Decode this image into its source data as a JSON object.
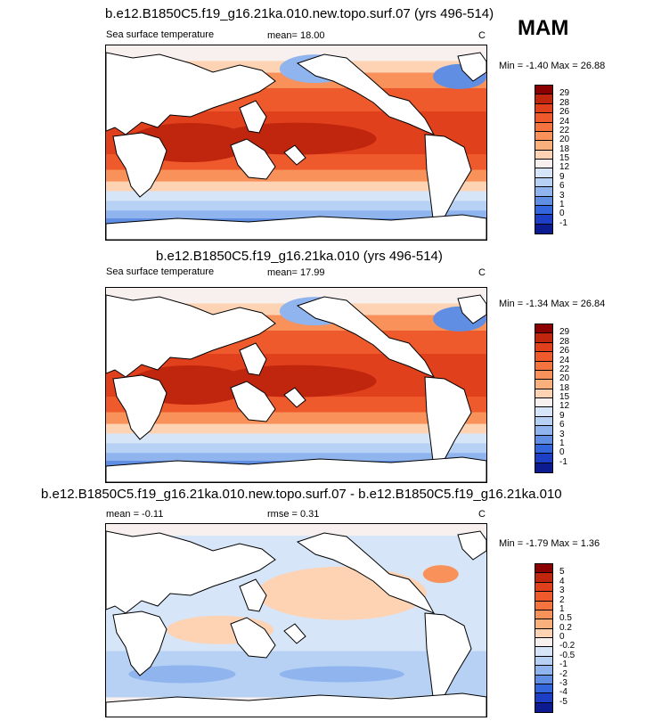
{
  "season": "MAM",
  "panels": [
    {
      "title": "b.e12.B1850C5.f19_g16.21ka.010.new.topo.surf.07 (yrs 496-514)",
      "left_label": "Sea surface temperature",
      "stat1": "mean=  18.00",
      "stat2": "",
      "units": "C",
      "minmax": "Min =  -1.40 Max =  26.88",
      "levels": [
        "29",
        "28",
        "26",
        "24",
        "22",
        "20",
        "18",
        "15",
        "12",
        "9",
        "6",
        "3",
        "1",
        "0",
        "-1"
      ],
      "colors": [
        "#8b0000",
        "#c0260e",
        "#e0401c",
        "#ef5a2c",
        "#f5733f",
        "#f8915a",
        "#fab07d",
        "#fdd3b4",
        "#f7f0ee",
        "#d6e6f8",
        "#b6d1f4",
        "#8fb4ee",
        "#5f8ee3",
        "#3366dd",
        "#1c3fc6",
        "#0c1c90"
      ],
      "kind": "sst"
    },
    {
      "title": "b.e12.B1850C5.f19_g16.21ka.010 (yrs 496-514)",
      "left_label": "Sea surface temperature",
      "stat1": "mean=  17.99",
      "stat2": "",
      "units": "C",
      "minmax": "Min =  -1.34 Max =  26.84",
      "levels": [
        "29",
        "28",
        "26",
        "24",
        "22",
        "20",
        "18",
        "15",
        "12",
        "9",
        "6",
        "3",
        "1",
        "0",
        "-1"
      ],
      "colors": [
        "#8b0000",
        "#c0260e",
        "#e0401c",
        "#ef5a2c",
        "#f5733f",
        "#f8915a",
        "#fab07d",
        "#fdd3b4",
        "#f7f0ee",
        "#d6e6f8",
        "#b6d1f4",
        "#8fb4ee",
        "#5f8ee3",
        "#3366dd",
        "#1c3fc6",
        "#0c1c90"
      ],
      "kind": "sst"
    },
    {
      "title": "b.e12.B1850C5.f19_g16.21ka.010.new.topo.surf.07 - b.e12.B1850C5.f19_g16.21ka.010",
      "left_label": "mean =  -0.11",
      "stat1": "rmse =   0.31",
      "stat2": "",
      "units": "C",
      "minmax": "Min =  -1.79 Max =   1.36",
      "levels": [
        "5",
        "4",
        "3",
        "2",
        "1",
        "0.5",
        "0.2",
        "0",
        "-0.2",
        "-0.5",
        "-1",
        "-2",
        "-3",
        "-4",
        "-5"
      ],
      "colors": [
        "#8b0000",
        "#c0260e",
        "#e0401c",
        "#ef5a2c",
        "#f5733f",
        "#f8915a",
        "#fab07d",
        "#fdd3b4",
        "#f7f0ee",
        "#d6e6f8",
        "#b6d1f4",
        "#8fb4ee",
        "#5f8ee3",
        "#3366dd",
        "#1c3fc6",
        "#0c1c90"
      ],
      "kind": "diff"
    }
  ]
}
